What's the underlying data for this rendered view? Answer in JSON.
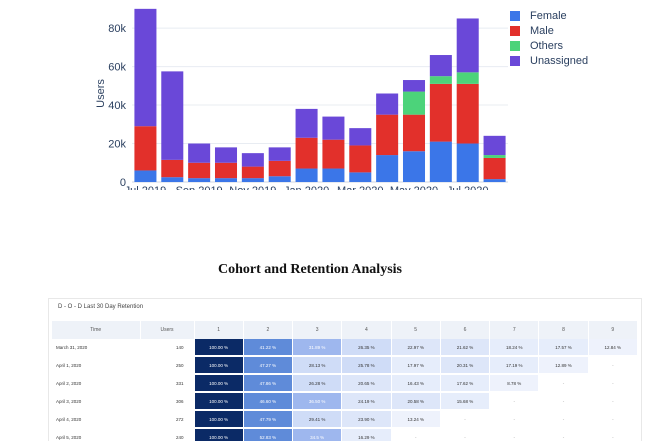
{
  "chart_data": {
    "type": "bar",
    "stacked": true,
    "categories": [
      "Jul 2019",
      "Aug 2019",
      "Sep 2019",
      "Oct 2019",
      "Nov 2019",
      "Dec 2019",
      "Jan 2020",
      "Feb 2020",
      "Mar 2020",
      "Apr 2020",
      "May 2020",
      "Jun 2020",
      "Jul 2020",
      "Aug 2020"
    ],
    "x_tick_labels": [
      "Jul 2019",
      "Sep 2019",
      "Nov 2019",
      "Jan 2020",
      "Mar 2020",
      "May 2020",
      "Jul 2020"
    ],
    "ylabel": "Users",
    "yticks": [
      0,
      20000,
      40000,
      60000,
      80000
    ],
    "ytick_labels": [
      "0",
      "20k",
      "40k",
      "60k",
      "80k"
    ],
    "ylim": [
      0,
      92000
    ],
    "series": [
      {
        "name": "Female",
        "color": "#3b76e8",
        "values": [
          6000,
          2500,
          2000,
          2000,
          2000,
          3000,
          7000,
          7000,
          5000,
          14000,
          16000,
          21000,
          20000,
          1500
        ]
      },
      {
        "name": "Male",
        "color": "#e2302b",
        "values": [
          23000,
          9000,
          8000,
          8000,
          6000,
          8000,
          16000,
          15000,
          14000,
          21000,
          19000,
          30000,
          31000,
          11000
        ]
      },
      {
        "name": "Others",
        "color": "#4cd37a",
        "values": [
          0,
          0,
          0,
          0,
          0,
          0,
          0,
          0,
          0,
          0,
          12000,
          4000,
          6000,
          1500
        ]
      },
      {
        "name": "Unassigned",
        "color": "#6a48d8",
        "values": [
          61000,
          46000,
          10000,
          8000,
          7000,
          7000,
          15000,
          12000,
          9000,
          11000,
          6000,
          11000,
          28000,
          10000
        ]
      }
    ]
  },
  "retention": {
    "heading": "Cohort and Retention Analysis",
    "title": "D - O - D Last 30 Day Retention",
    "columns": [
      "Time",
      "Users",
      "1",
      "2",
      "3",
      "4",
      "5",
      "6",
      "7",
      "8",
      "9"
    ],
    "rows": [
      {
        "time": "March 31, 2020",
        "users": "140",
        "cells": [
          "100.00 %",
          "41.22 %",
          "31.89 %",
          "26.35 %",
          "22.97 %",
          "21.62 %",
          "18.24 %",
          "17.57 %",
          "12.84 %"
        ]
      },
      {
        "time": "April 1, 2020",
        "users": "250",
        "cells": [
          "100.00 %",
          "47.27 %",
          "28.13 %",
          "25.78 %",
          "17.97 %",
          "20.31 %",
          "17.19 %",
          "12.89 %",
          "-"
        ]
      },
      {
        "time": "April 2, 2020",
        "users": "331",
        "cells": [
          "100.00 %",
          "47.86 %",
          "26.28 %",
          "20.65 %",
          "16.43 %",
          "17.62 %",
          "8.78 %",
          "-",
          "-"
        ]
      },
      {
        "time": "April 3, 2020",
        "users": "306",
        "cells": [
          "100.00 %",
          "46.60 %",
          "36.50 %",
          "24.19 %",
          "20.58 %",
          "15.68 %",
          "-",
          "-",
          "-"
        ]
      },
      {
        "time": "April 4, 2020",
        "users": "272",
        "cells": [
          "100.00 %",
          "47.79 %",
          "29.41 %",
          "23.90 %",
          "13.24 %",
          "-",
          "-",
          "-",
          "-"
        ]
      },
      {
        "time": "April 5, 2020",
        "users": "240",
        "cells": [
          "100.00 %",
          "52.83 %",
          "34.5 %",
          "16.29 %",
          "-",
          "-",
          "-",
          "-",
          "-"
        ]
      }
    ]
  }
}
